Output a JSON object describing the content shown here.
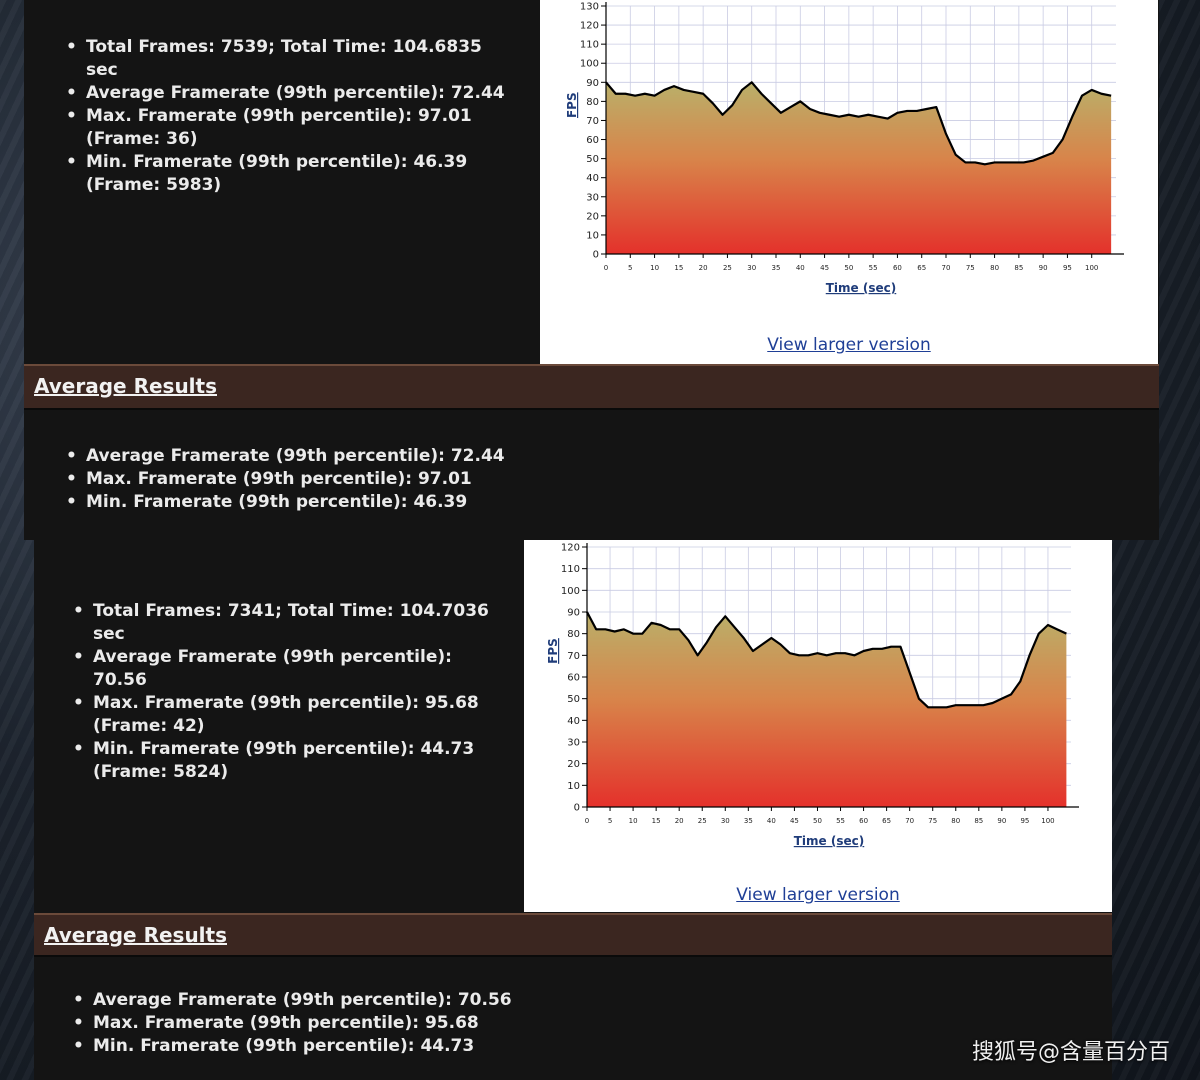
{
  "sections": [
    {
      "stats": [
        "Total Frames: 7539; Total Time: 104.6835 sec",
        "Average Framerate (99th percentile): 72.44",
        "Max. Framerate (99th percentile): 97.01 (Frame: 36)",
        "Min. Framerate (99th percentile): 46.39 (Frame: 5983)"
      ],
      "view_larger": "View larger version",
      "avg_title": "Average Results",
      "avg_stats": [
        "Average Framerate (99th percentile): 72.44",
        "Max. Framerate (99th percentile): 97.01",
        "Min. Framerate (99th percentile): 46.39"
      ]
    },
    {
      "stats": [
        "Total Frames: 7341; Total Time: 104.7036 sec",
        "Average Framerate (99th percentile): 70.56",
        "Max. Framerate (99th percentile): 95.68 (Frame: 42)",
        "Min. Framerate (99th percentile): 44.73 (Frame: 5824)"
      ],
      "view_larger": "View larger version",
      "avg_title": "Average Results",
      "avg_stats": [
        "Average Framerate (99th percentile): 70.56",
        "Max. Framerate (99th percentile): 95.68",
        "Min. Framerate (99th percentile): 44.73"
      ]
    }
  ],
  "chart_data": [
    {
      "type": "area",
      "xlabel": "Time (sec)",
      "ylabel": "FPS",
      "xlim": [
        0,
        105
      ],
      "ylim": [
        0,
        130
      ],
      "xticks": [
        0,
        5,
        10,
        15,
        20,
        25,
        30,
        35,
        40,
        45,
        50,
        55,
        60,
        65,
        70,
        75,
        80,
        85,
        90,
        95,
        100
      ],
      "yticks": [
        0,
        10,
        20,
        30,
        40,
        50,
        60,
        70,
        80,
        90,
        100,
        110,
        120,
        130
      ],
      "grid": true,
      "colors": {
        "fill_top": "#b9b06a",
        "fill_mid": "#d8844a",
        "fill_bottom": "#e4312b",
        "line": "#000000"
      },
      "series": [
        {
          "x": [
            0,
            2,
            4,
            6,
            8,
            10,
            12,
            14,
            16,
            18,
            20,
            22,
            24,
            26,
            28,
            30,
            32,
            34,
            36,
            38,
            40,
            42,
            44,
            46,
            48,
            50,
            52,
            54,
            56,
            58,
            60,
            62,
            64,
            66,
            68,
            70,
            72,
            74,
            76,
            78,
            80,
            82,
            84,
            86,
            88,
            90,
            92,
            94,
            96,
            98,
            100,
            102,
            104
          ],
          "y": [
            90,
            84,
            84,
            83,
            84,
            83,
            86,
            88,
            86,
            85,
            84,
            79,
            73,
            78,
            86,
            90,
            84,
            79,
            74,
            77,
            80,
            76,
            74,
            73,
            72,
            73,
            72,
            73,
            72,
            71,
            74,
            75,
            75,
            76,
            77,
            63,
            52,
            48,
            48,
            47,
            48,
            48,
            48,
            48,
            49,
            51,
            53,
            60,
            72,
            83,
            86,
            84,
            83
          ]
        }
      ]
    },
    {
      "type": "area",
      "xlabel": "Time (sec)",
      "ylabel": "FPS",
      "xlim": [
        0,
        105
      ],
      "ylim": [
        0,
        120
      ],
      "xticks": [
        0,
        5,
        10,
        15,
        20,
        25,
        30,
        35,
        40,
        45,
        50,
        55,
        60,
        65,
        70,
        75,
        80,
        85,
        90,
        95,
        100
      ],
      "yticks": [
        0,
        10,
        20,
        30,
        40,
        50,
        60,
        70,
        80,
        90,
        100,
        110,
        120
      ],
      "grid": true,
      "colors": {
        "fill_top": "#b9b06a",
        "fill_mid": "#d8844a",
        "fill_bottom": "#e4312b",
        "line": "#000000"
      },
      "series": [
        {
          "x": [
            0,
            2,
            4,
            6,
            8,
            10,
            12,
            14,
            16,
            18,
            20,
            22,
            24,
            26,
            28,
            30,
            32,
            34,
            36,
            38,
            40,
            42,
            44,
            46,
            48,
            50,
            52,
            54,
            56,
            58,
            60,
            62,
            64,
            66,
            68,
            70,
            72,
            74,
            76,
            78,
            80,
            82,
            84,
            86,
            88,
            90,
            92,
            94,
            96,
            98,
            100,
            102,
            104
          ],
          "y": [
            90,
            82,
            82,
            81,
            82,
            80,
            80,
            85,
            84,
            82,
            82,
            77,
            70,
            76,
            83,
            88,
            83,
            78,
            72,
            75,
            78,
            75,
            71,
            70,
            70,
            71,
            70,
            71,
            71,
            70,
            72,
            73,
            73,
            74,
            74,
            62,
            50,
            46,
            46,
            46,
            47,
            47,
            47,
            47,
            48,
            50,
            52,
            58,
            70,
            80,
            84,
            82,
            80
          ]
        }
      ]
    }
  ],
  "watermark": "搜狐号@含量百分百"
}
